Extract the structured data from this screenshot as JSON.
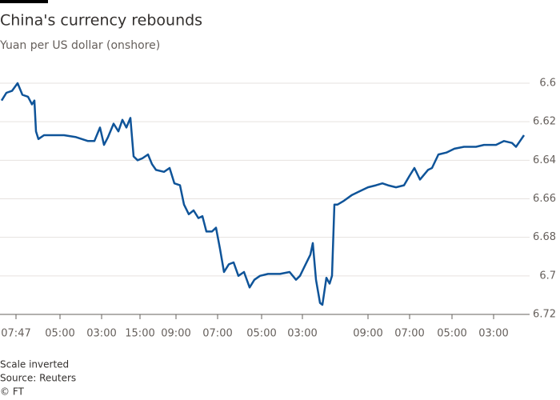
{
  "chart_data": {
    "type": "line",
    "title": "China's currency rebounds",
    "subtitle": "Yuan per US dollar (onshore)",
    "notes": [
      "Scale inverted",
      "Source: Reuters"
    ],
    "credit": "© FT",
    "y_inverted": true,
    "grid": true,
    "series": [
      {
        "name": "Yuan per US dollar",
        "color": "#0f5499",
        "x": [
          2,
          8,
          15,
          22,
          28,
          35,
          40,
          43,
          45,
          48,
          55,
          65,
          80,
          95,
          110,
          118,
          125,
          130,
          135,
          142,
          148,
          153,
          158,
          163,
          167,
          172,
          178,
          185,
          190,
          195,
          205,
          212,
          218,
          225,
          230,
          236,
          242,
          248,
          253,
          258,
          265,
          270,
          275,
          280,
          286,
          292,
          298,
          305,
          312,
          318,
          325,
          335,
          350,
          362,
          370,
          375,
          382,
          388,
          391,
          395,
          400,
          403,
          408,
          412,
          415,
          418,
          422,
          430,
          440,
          450,
          460,
          470,
          478,
          485,
          495,
          505,
          512,
          518,
          525,
          535,
          540,
          548,
          558,
          568,
          580,
          595,
          605,
          620,
          630,
          640,
          645,
          650,
          655
        ],
        "values": [
          6.609,
          6.605,
          6.604,
          6.6,
          6.606,
          6.607,
          6.611,
          6.609,
          6.625,
          6.629,
          6.627,
          6.627,
          6.627,
          6.628,
          6.63,
          6.63,
          6.623,
          6.632,
          6.628,
          6.621,
          6.625,
          6.619,
          6.623,
          6.618,
          6.638,
          6.64,
          6.639,
          6.637,
          6.642,
          6.645,
          6.646,
          6.644,
          6.652,
          6.653,
          6.663,
          6.668,
          6.666,
          6.67,
          6.669,
          6.677,
          6.677,
          6.675,
          6.686,
          6.698,
          6.694,
          6.693,
          6.7,
          6.698,
          6.706,
          6.702,
          6.7,
          6.699,
          6.699,
          6.698,
          6.702,
          6.7,
          6.694,
          6.689,
          6.683,
          6.702,
          6.714,
          6.715,
          6.701,
          6.704,
          6.7,
          6.663,
          6.663,
          6.661,
          6.658,
          6.656,
          6.654,
          6.653,
          6.652,
          6.653,
          6.654,
          6.653,
          6.648,
          6.644,
          6.65,
          6.645,
          6.644,
          6.637,
          6.636,
          6.634,
          6.633,
          6.633,
          6.632,
          6.632,
          6.63,
          6.631,
          6.633,
          6.63,
          6.627
        ]
      }
    ],
    "xlim": [
      0,
      655
    ],
    "xticks": [
      {
        "value": 20,
        "label": "07:47"
      },
      {
        "value": 75,
        "label": "05:00"
      },
      {
        "value": 127,
        "label": "03:00"
      },
      {
        "value": 175,
        "label": "15:00"
      },
      {
        "value": 220,
        "label": "09:00"
      },
      {
        "value": 272,
        "label": "07:00"
      },
      {
        "value": 327,
        "label": "05:00"
      },
      {
        "value": 378,
        "label": "03:00"
      },
      {
        "value": 460,
        "label": "09:00"
      },
      {
        "value": 512,
        "label": "07:00"
      },
      {
        "value": 565,
        "label": "05:00"
      },
      {
        "value": 617,
        "label": "03:00"
      }
    ],
    "ylim": [
      6.6,
      6.72
    ],
    "yticks": [
      6.6,
      6.62,
      6.64,
      6.66,
      6.68,
      6.7,
      6.72
    ]
  }
}
